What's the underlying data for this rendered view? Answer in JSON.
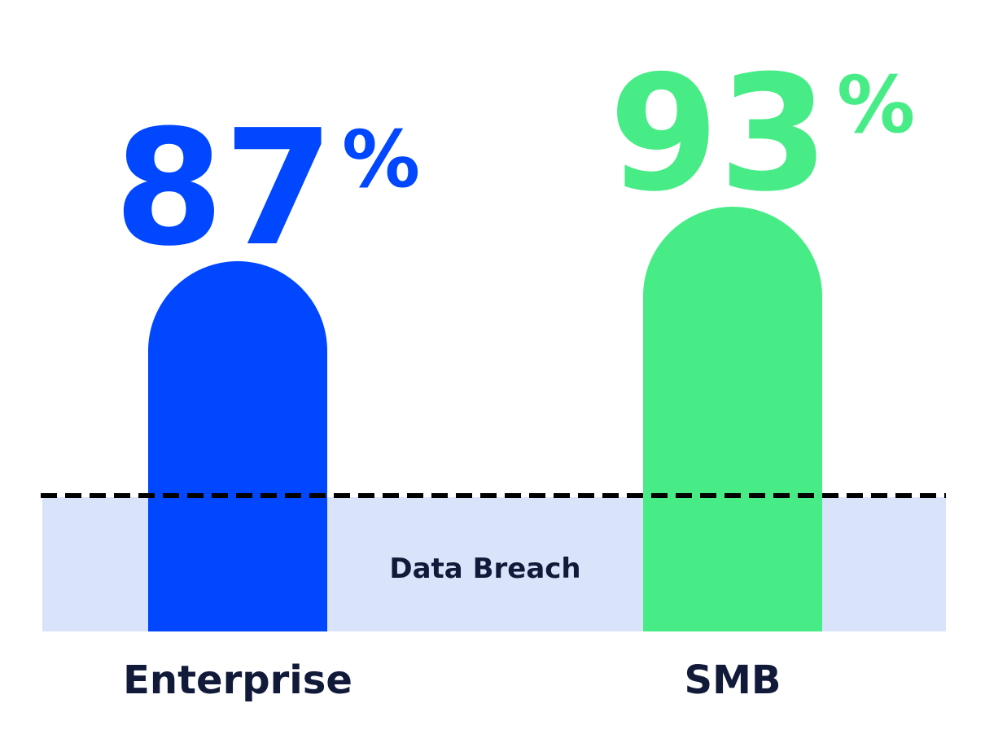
{
  "chart_data": {
    "type": "bar",
    "categories": [
      "Enterprise",
      "SMB"
    ],
    "values": [
      87,
      93
    ],
    "value_unit": "%",
    "bar_style": "rounded-top pill",
    "colors": [
      "#0047ff",
      "#48ec86"
    ],
    "band": {
      "label": "Data Breach",
      "color": "#d9e4fb"
    },
    "reference_line": {
      "style": "dashed",
      "color": "#000000"
    },
    "grid": false,
    "legend": "none"
  }
}
